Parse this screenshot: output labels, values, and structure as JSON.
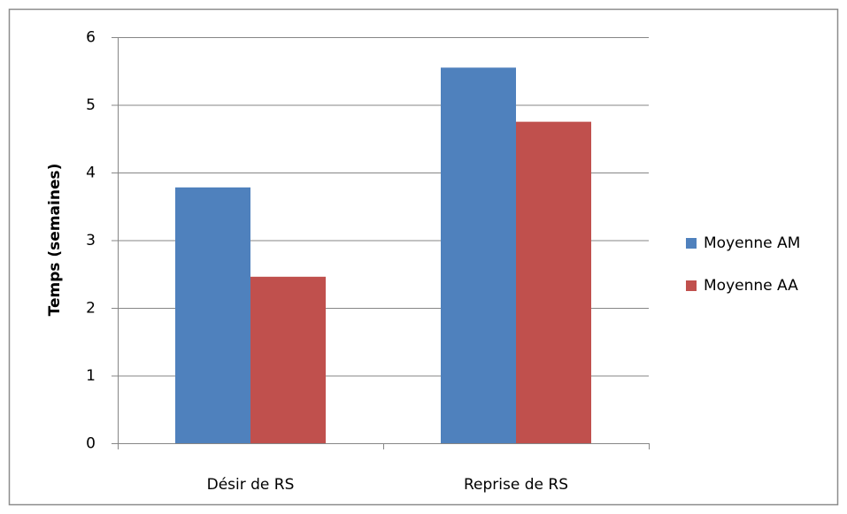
{
  "chart_data": {
    "type": "bar",
    "ylabel": "Temps (semaines)",
    "categories": [
      "Désir de RS",
      "Reprise de RS"
    ],
    "series": [
      {
        "name": "Moyenne AM",
        "color": "#4f81bd",
        "values": [
          3.78,
          5.55
        ]
      },
      {
        "name": "Moyenne AA",
        "color": "#c0504d",
        "values": [
          2.46,
          4.75
        ]
      }
    ],
    "ylim": [
      0,
      6
    ],
    "yticks": [
      0,
      1,
      2,
      3,
      4,
      5,
      6
    ],
    "grid": true,
    "legend": "right"
  }
}
